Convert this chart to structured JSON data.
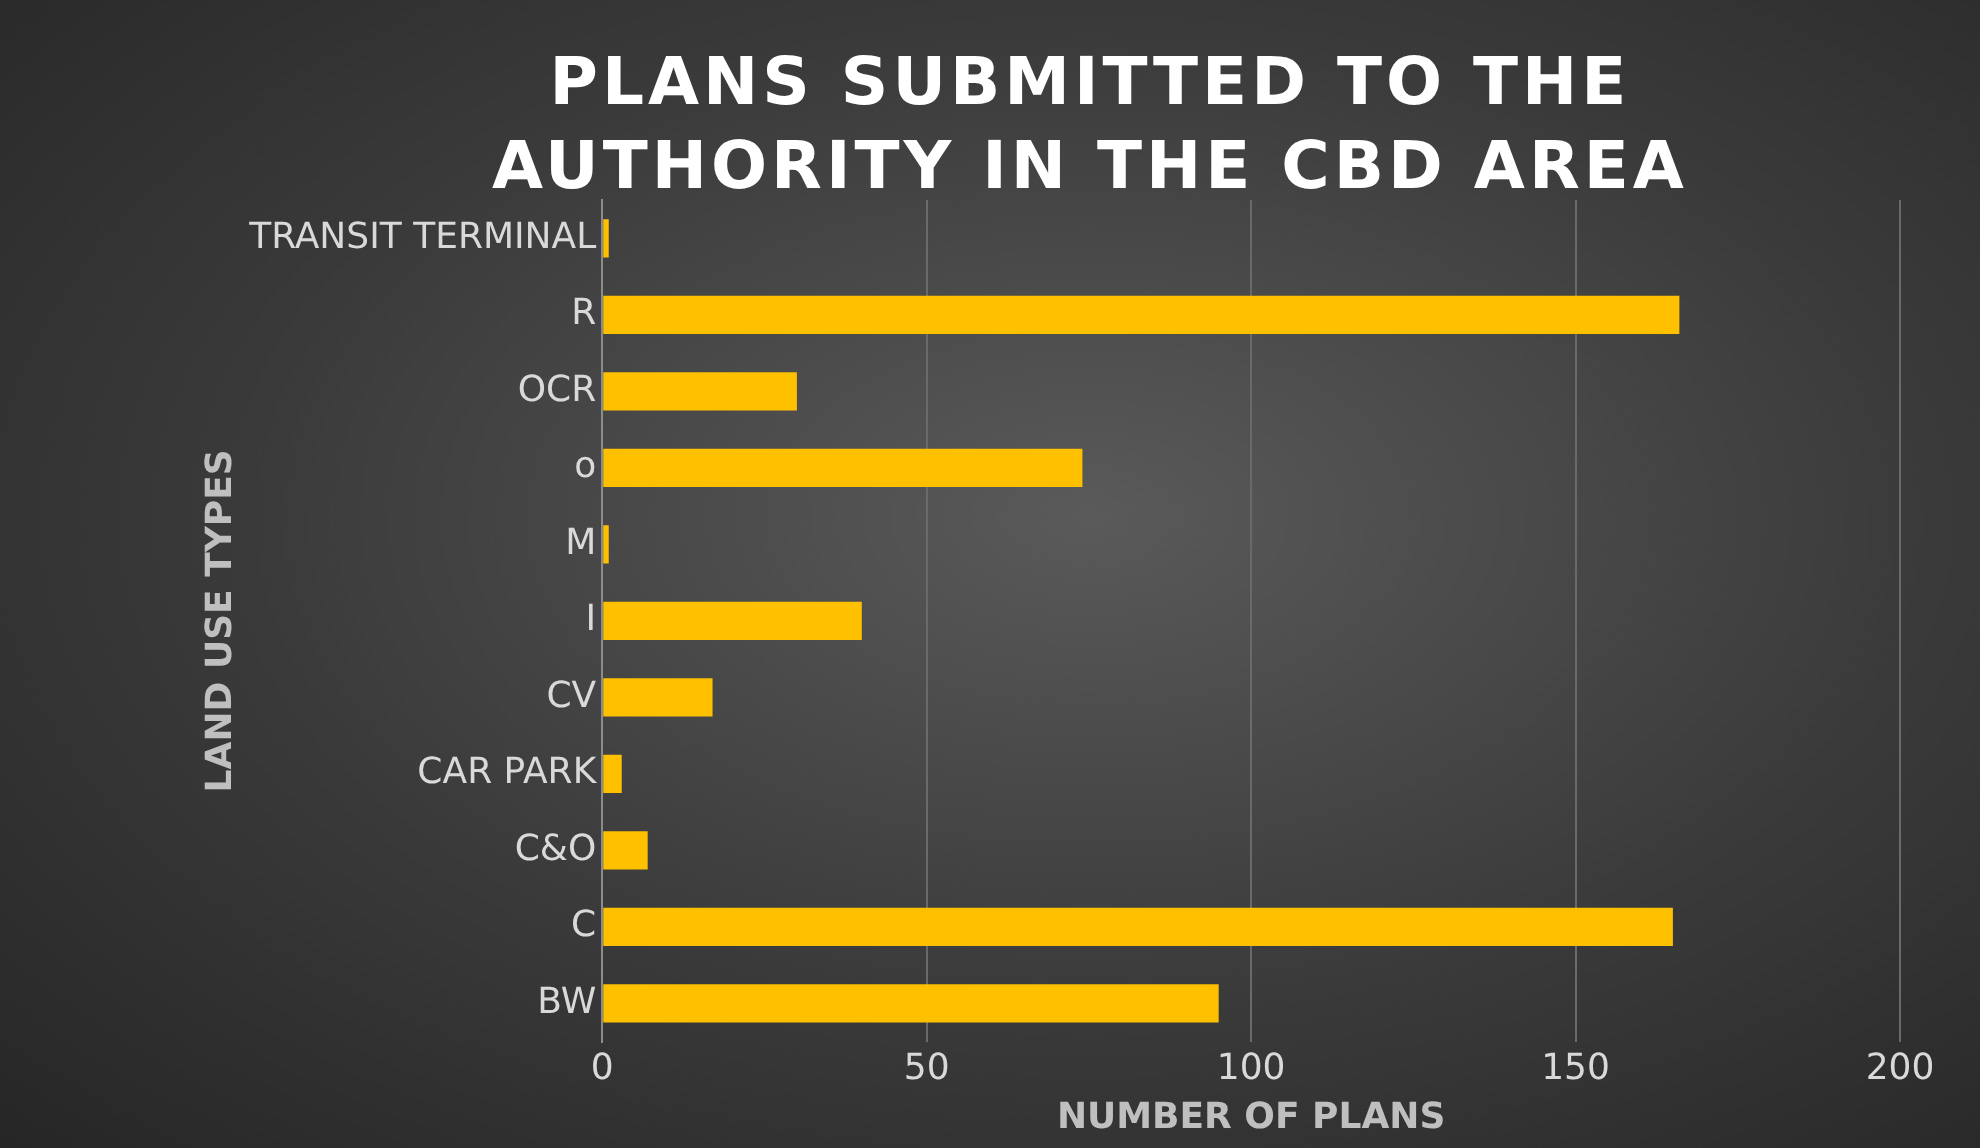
{
  "chart_data": {
    "type": "bar",
    "orientation": "horizontal",
    "title": "PLANS SUBMITTED TO THE AUTHORITY IN THE CBD AREA",
    "xlabel": "NUMBER OF PLANS",
    "ylabel": "LAND USE TYPES",
    "categories": [
      "TRANSIT TERMINAL",
      "R",
      "OCR",
      "o",
      "M",
      "I",
      "CV",
      "CAR PARK",
      "C&O",
      "C",
      "BW"
    ],
    "values": [
      1,
      166,
      30,
      74,
      1,
      40,
      17,
      3,
      7,
      165,
      95
    ],
    "color": "#ffc000",
    "xlim": [
      0,
      200
    ],
    "xticks": [
      0,
      50,
      100,
      150,
      200
    ],
    "grid": "x",
    "legend": false
  }
}
